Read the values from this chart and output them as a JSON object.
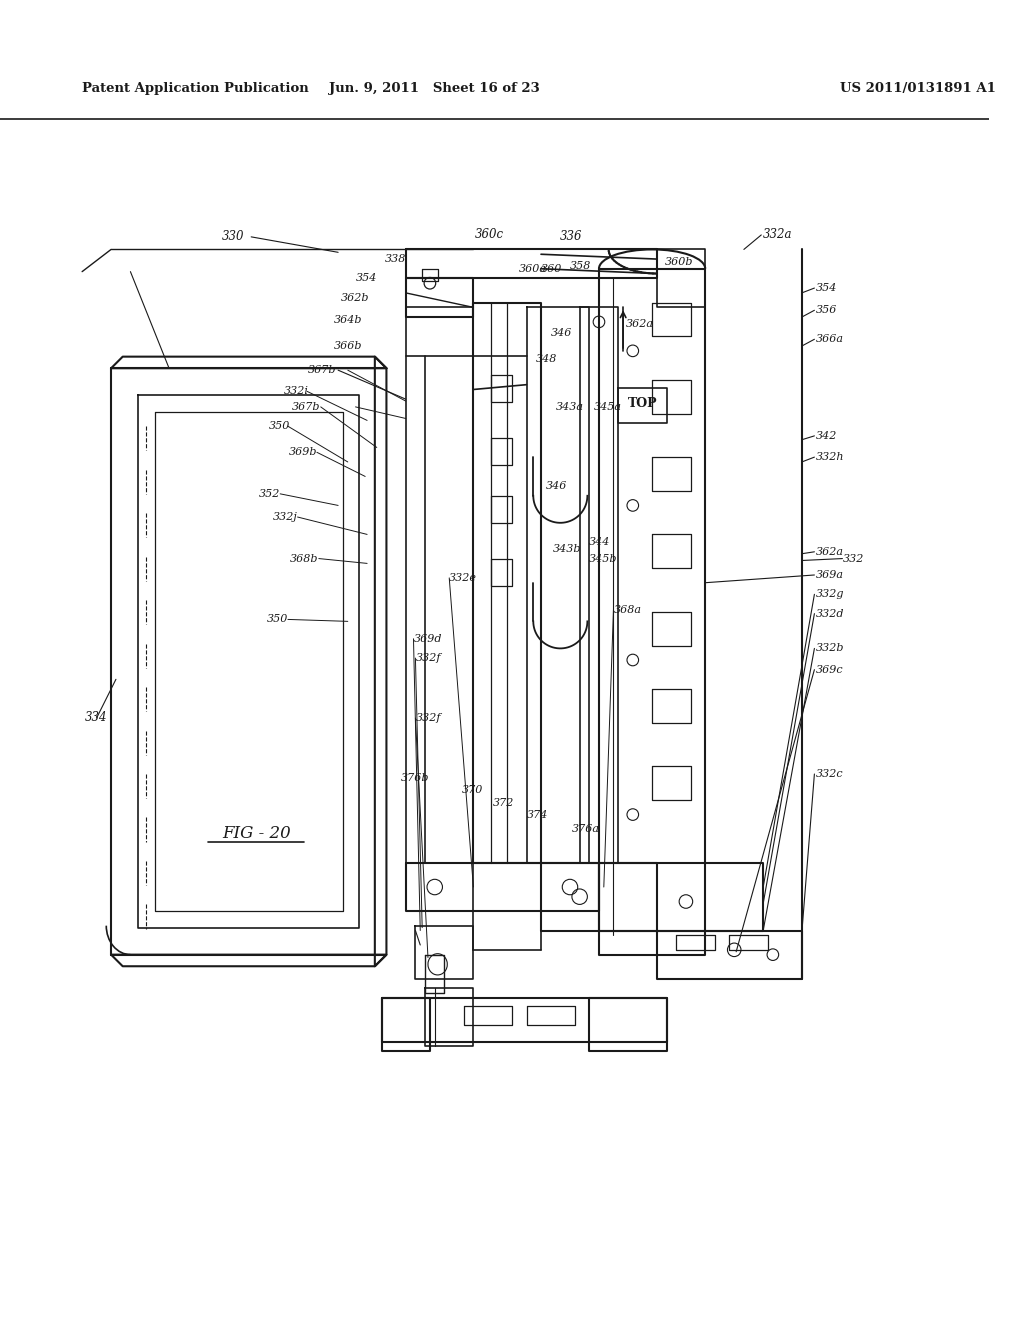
{
  "title_left": "Patent Application Publication",
  "title_mid": "Jun. 9, 2011   Sheet 16 of 23",
  "title_right": "US 2011/0131891 A1",
  "fig_label": "FIG - 20",
  "background_color": "#ffffff",
  "line_color": "#1a1a1a",
  "text_color": "#1a1a1a",
  "page_width": 10.24,
  "page_height": 13.2,
  "dpi": 100
}
